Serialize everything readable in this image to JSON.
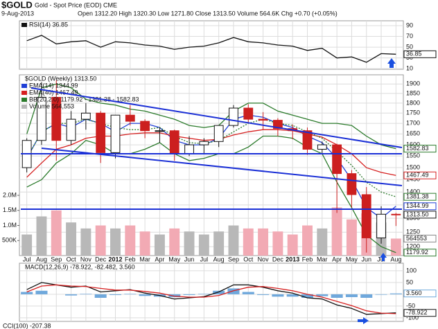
{
  "header": {
    "symbol": "$GOLD",
    "name": "Gold - Spot Price (EOD) CME",
    "date": "9-Aug-2013",
    "quote": "Open 1312.20  High 1320.30  Low 1271.80  Close 1313.50  Volume 564.6K  Chg +0.70 (+0.05%)"
  },
  "chart_data": [
    {
      "type": "line",
      "ylim": [
        9,
        99
      ],
      "yticks": [
        10,
        30,
        50,
        70,
        90
      ],
      "grid": true,
      "series": [
        {
          "name": "RSI(14) 36.85",
          "color": "#111111",
          "values": [
            62,
            72,
            56,
            60,
            62,
            50,
            60,
            58,
            54,
            52,
            46,
            50,
            52,
            58,
            68,
            60,
            58,
            54,
            52,
            44,
            48,
            30,
            32,
            22,
            38,
            36.85
          ]
        }
      ],
      "badges": [
        {
          "value": 36.85,
          "color": "#111111"
        }
      ]
    },
    {
      "type": "candlestick",
      "title": "$GOLD (Weekly) 1313.50",
      "log_scale": true,
      "ylim": [
        1170,
        1950
      ],
      "yticks": [
        1200,
        1250,
        1300,
        1350,
        1400,
        1450,
        1500,
        1550,
        1600,
        1650,
        1700,
        1750,
        1800,
        1850,
        1900
      ],
      "grid": true,
      "categories": [
        "Jul",
        "Aug",
        "Sep",
        "Oct",
        "Nov",
        "Dec",
        "2012",
        "Feb",
        "Mar",
        "Apr",
        "May",
        "Jun",
        "Jul",
        "Aug",
        "Sep",
        "Oct",
        "Nov",
        "Dec",
        "2013",
        "Feb",
        "Mar",
        "Apr",
        "May",
        "Jun",
        "Jul",
        "Aug"
      ],
      "open": [
        1500,
        1620,
        1830,
        1620,
        1720,
        1750,
        1565,
        1740,
        1710,
        1665,
        1665,
        1560,
        1600,
        1615,
        1690,
        1775,
        1720,
        1715,
        1675,
        1665,
        1580,
        1600,
        1475,
        1390,
        1230,
        1315
      ],
      "high": [
        1630,
        1910,
        1920,
        1760,
        1800,
        1760,
        1740,
        1790,
        1720,
        1680,
        1670,
        1640,
        1630,
        1690,
        1790,
        1795,
        1755,
        1725,
        1695,
        1680,
        1615,
        1605,
        1490,
        1420,
        1345,
        1320
      ],
      "low": [
        1480,
        1600,
        1530,
        1600,
        1670,
        1520,
        1540,
        1690,
        1630,
        1610,
        1530,
        1550,
        1560,
        1590,
        1680,
        1700,
        1670,
        1640,
        1625,
        1555,
        1560,
        1320,
        1340,
        1180,
        1210,
        1272
      ],
      "close": [
        1620,
        1830,
        1620,
        1720,
        1750,
        1565,
        1740,
        1710,
        1665,
        1665,
        1560,
        1600,
        1615,
        1690,
        1775,
        1720,
        1715,
        1675,
        1665,
        1580,
        1600,
        1475,
        1390,
        1230,
        1315,
        1313.5
      ],
      "up_color": "#111111",
      "down_color": "#cc1f1f",
      "series": [
        {
          "name": "EMA(14) 1344.99",
          "color": "#1f3fd6",
          "values": [
            1540,
            1660,
            1700,
            1680,
            1720,
            1700,
            1660,
            1700,
            1700,
            1680,
            1620,
            1600,
            1600,
            1630,
            1720,
            1740,
            1730,
            1700,
            1680,
            1640,
            1610,
            1540,
            1450,
            1340,
            1300,
            1344.99
          ]
        },
        {
          "name": "EMA(40) 1467.49",
          "color": "#d62020",
          "values": [
            1460,
            1520,
            1580,
            1600,
            1630,
            1640,
            1640,
            1650,
            1655,
            1655,
            1640,
            1630,
            1620,
            1625,
            1645,
            1660,
            1670,
            1670,
            1665,
            1650,
            1635,
            1600,
            1560,
            1500,
            1480,
            1467.49
          ]
        },
        {
          "name": "BB(20,2.0) 1179.92 - 1381.38 - 1582.83",
          "color": "#2a7a2a",
          "values": [
            1650,
            1880,
            1900,
            1880,
            1820,
            1800,
            1790,
            1770,
            1760,
            1740,
            1720,
            1690,
            1680,
            1690,
            1760,
            1800,
            1800,
            1760,
            1740,
            1720,
            1700,
            1700,
            1690,
            1640,
            1600,
            1582.83
          ]
        },
        {
          "color": "#2a7a2a",
          "dashed": true,
          "values": [
            1540,
            1660,
            1700,
            1700,
            1720,
            1700,
            1680,
            1670,
            1670,
            1680,
            1640,
            1610,
            1605,
            1620,
            1660,
            1700,
            1720,
            1700,
            1690,
            1660,
            1630,
            1570,
            1510,
            1440,
            1400,
            1381.38
          ]
        },
        {
          "color": "#2a7a2a",
          "values": [
            1420,
            1450,
            1520,
            1560,
            1620,
            1600,
            1560,
            1560,
            1580,
            1610,
            1560,
            1530,
            1540,
            1560,
            1560,
            1590,
            1640,
            1640,
            1630,
            1590,
            1560,
            1440,
            1340,
            1240,
            1200,
            1179.92
          ]
        }
      ],
      "volume": {
        "name": "Volume 564,553",
        "up_color": "#b8b8b8",
        "down_color": "#f2aab4",
        "values": [
          700000,
          1300000,
          1500000,
          1100000,
          900000,
          1000000,
          900000,
          1000000,
          800000,
          700000,
          900000,
          800000,
          700000,
          800000,
          1000000,
          900000,
          900000,
          800000,
          700000,
          1000000,
          900000,
          1600000,
          1200000,
          1400000,
          1100000,
          564553
        ]
      },
      "y2lim": [
        0,
        6000000
      ],
      "y2ticks": [
        {
          "value": 500000,
          "label": "500K"
        },
        {
          "value": 1000000,
          "label": "1.0M"
        },
        {
          "value": 1500000,
          "label": "1.5M"
        },
        {
          "value": 2000000,
          "label": "2.0M"
        }
      ],
      "badges": [
        {
          "value": 1582.83,
          "color": "#2a7a2a"
        },
        {
          "value": 1467.49,
          "color": "#d62020"
        },
        {
          "value": 1381.38,
          "color": "#2a7a2a"
        },
        {
          "value": 1344.99,
          "color": "#1f3fd6"
        },
        {
          "value": 1313.5,
          "label": "1313.50",
          "color": "#111111"
        },
        {
          "value": 564553,
          "color": "#888888",
          "axis": "y2"
        },
        {
          "value": 1179.92,
          "color": "#2a7a2a"
        }
      ]
    },
    {
      "type": "line",
      "title": "MACD(12,26,9) -78.922, -82.482, 3.560",
      "ylim": [
        -115,
        132
      ],
      "yticks": [
        -100,
        -50,
        0,
        50,
        100
      ],
      "grid": true,
      "histogram": {
        "color": "#6fa8dc",
        "values": [
          10,
          15,
          0,
          -5,
          2,
          -15,
          -3,
          2,
          -7,
          -10,
          -12,
          -3,
          2,
          15,
          25,
          10,
          -3,
          -10,
          -10,
          -15,
          -8,
          -15,
          -12,
          -15,
          -2,
          3.56
        ]
      },
      "series": [
        {
          "color": "#111111",
          "values": [
            20,
            50,
            40,
            30,
            35,
            10,
            15,
            20,
            5,
            -5,
            -20,
            -15,
            -10,
            10,
            40,
            40,
            30,
            15,
            5,
            -15,
            -20,
            -45,
            -60,
            -85,
            -82,
            -78.922
          ]
        },
        {
          "color": "#d62020",
          "values": [
            10,
            35,
            40,
            35,
            33,
            25,
            18,
            18,
            12,
            5,
            -8,
            -12,
            -12,
            -5,
            15,
            30,
            33,
            25,
            15,
            0,
            -12,
            -30,
            -48,
            -70,
            -80,
            -82.482
          ]
        }
      ],
      "badges": [
        {
          "value": 3.56,
          "label": "3.560",
          "color": "#6fa8dc"
        },
        {
          "value": -78.922,
          "color": "#111111"
        }
      ],
      "footer": "CCI(100) -207.38"
    }
  ]
}
